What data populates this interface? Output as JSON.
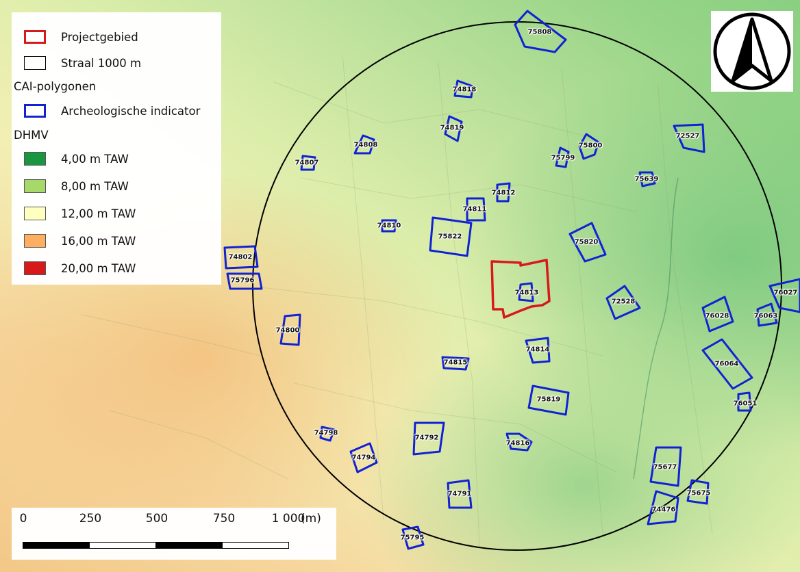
{
  "legend": {
    "items": [
      {
        "label": "Projectgebied",
        "kind": "outline",
        "color": "#d7191c"
      },
      {
        "label": "Straal 1000 m",
        "kind": "outline",
        "color": "#000000"
      },
      {
        "heading": "CAI-polygonen"
      },
      {
        "label": "Archeologische indicator",
        "kind": "outline",
        "color": "#1122d4"
      },
      {
        "heading": "DHMV"
      },
      {
        "label": "4,00 m TAW",
        "kind": "fill",
        "color": "#1a9641"
      },
      {
        "label": "8,00 m TAW",
        "kind": "fill",
        "color": "#a6d96a"
      },
      {
        "label": "12,00 m TAW",
        "kind": "fill",
        "color": "#ffffc0"
      },
      {
        "label": "16,00 m TAW",
        "kind": "fill",
        "color": "#fdae61"
      },
      {
        "label": "20,00 m TAW",
        "kind": "fill",
        "color": "#d7191c"
      }
    ]
  },
  "scalebar": {
    "ticks": [
      "0",
      "250",
      "500",
      "750",
      "1 000"
    ],
    "unit": "(m)"
  },
  "north_arrow": {
    "icon": "north-arrow-icon"
  },
  "sites": [
    "75808",
    "74818",
    "74819",
    "74808",
    "74807",
    "75800",
    "75799",
    "72527",
    "75639",
    "74812",
    "74811",
    "74810",
    "75822",
    "75820",
    "74802",
    "75796",
    "74813",
    "72528",
    "76027",
    "76028",
    "76063",
    "74800",
    "74814",
    "74815",
    "76064",
    "75819",
    "76051",
    "74798",
    "74792",
    "74816",
    "74794",
    "75677",
    "75675",
    "74791",
    "74476",
    "75795"
  ],
  "colors": {
    "project": "#d7191c",
    "indicator": "#1122d4",
    "radius": "#000000"
  }
}
